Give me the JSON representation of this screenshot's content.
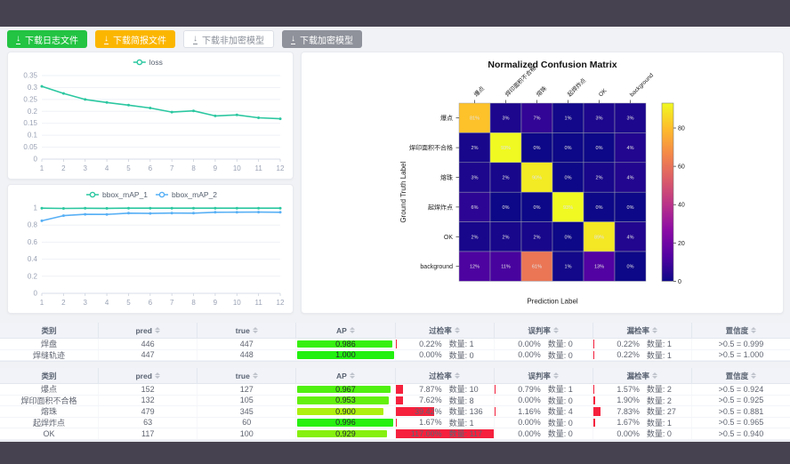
{
  "frame": {
    "band_color": "#474250",
    "page_bg": "#f0f2f5"
  },
  "toolbar": {
    "buttons": [
      {
        "label": "下载日志文件",
        "variant": "green",
        "icon": "download-icon"
      },
      {
        "label": "下载简报文件",
        "variant": "orange",
        "icon": "download-icon"
      },
      {
        "label": "下载非加密模型",
        "variant": "ghost",
        "icon": "download-icon"
      },
      {
        "label": "下载加密模型",
        "variant": "gray",
        "icon": "download-icon"
      }
    ]
  },
  "chart_data": [
    {
      "type": "line",
      "title": "",
      "legend": [
        "loss"
      ],
      "legend_position": "top",
      "grid": true,
      "x": [
        1,
        2,
        3,
        4,
        5,
        6,
        7,
        8,
        9,
        10,
        11,
        12
      ],
      "series": [
        {
          "name": "loss",
          "color": "#2bc7a0",
          "values": [
            0.305,
            0.275,
            0.25,
            0.237,
            0.226,
            0.214,
            0.197,
            0.202,
            0.181,
            0.185,
            0.173,
            0.169
          ]
        }
      ],
      "ylim": [
        0,
        0.35
      ],
      "yticks": [
        0,
        0.05,
        0.1,
        0.15,
        0.2,
        0.25,
        0.3,
        0.35
      ]
    },
    {
      "type": "line",
      "title": "",
      "legend": [
        "bbox_mAP_1",
        "bbox_mAP_2"
      ],
      "legend_position": "top",
      "grid": true,
      "x": [
        1,
        2,
        3,
        4,
        5,
        6,
        7,
        8,
        9,
        10,
        11,
        12
      ],
      "series": [
        {
          "name": "bbox_mAP_1",
          "color": "#2bc7a0",
          "values": [
            0.998,
            0.995,
            0.997,
            0.996,
            0.998,
            0.998,
            0.998,
            0.998,
            0.998,
            0.998,
            0.998,
            0.998
          ]
        },
        {
          "name": "bbox_mAP_2",
          "color": "#58b0f5",
          "values": [
            0.85,
            0.91,
            0.926,
            0.925,
            0.94,
            0.936,
            0.941,
            0.94,
            0.95,
            0.951,
            0.952,
            0.95
          ]
        }
      ],
      "ylim": [
        0,
        1
      ],
      "yticks": [
        0,
        0.2,
        0.4,
        0.6,
        0.8,
        1
      ]
    },
    {
      "type": "heatmap",
      "title": "Normalized Confusion Matrix",
      "xlabel": "Prediction Label",
      "ylabel": "Ground Truth Label",
      "categories": [
        "爆点",
        "焊印面积不合格",
        "熔珠",
        "起焊炸点",
        "OK",
        "background"
      ],
      "matrix": [
        [
          81,
          3,
          7,
          1,
          3,
          3
        ],
        [
          2,
          93,
          0,
          0,
          0,
          4
        ],
        [
          3,
          2,
          90,
          0,
          2,
          4
        ],
        [
          6,
          0,
          0,
          93,
          0,
          0
        ],
        [
          2,
          2,
          2,
          0,
          89,
          4
        ],
        [
          12,
          11,
          61,
          1,
          13,
          0
        ]
      ],
      "unit": "%",
      "vmin": 0,
      "vmax": 93,
      "colormap": "plasma",
      "colorbar_ticks": [
        0,
        20,
        40,
        60,
        80
      ]
    }
  ],
  "tables": {
    "count_label": "数量:",
    "headers": [
      {
        "label": "类别",
        "sortable": false
      },
      {
        "label": "pred",
        "sortable": true
      },
      {
        "label": "true",
        "sortable": true
      },
      {
        "label": "AP",
        "sortable": true
      },
      {
        "label": "过检率",
        "sortable": true
      },
      {
        "label": "误判率",
        "sortable": true
      },
      {
        "label": "漏检率",
        "sortable": true
      },
      {
        "label": "置信度",
        "sortable": true
      }
    ],
    "groups": [
      {
        "rows": [
          {
            "class": "焊盘",
            "pred": "446",
            "true": "447",
            "ap": {
              "text": "0.986",
              "value": 0.986
            },
            "over": {
              "pct": "0.22%",
              "count": "1",
              "value": 0.22
            },
            "mis": {
              "pct": "0.00%",
              "count": "0",
              "value": 0
            },
            "miss": {
              "pct": "0.22%",
              "count": "1",
              "value": 0.22
            },
            "conf": ">0.5 = 0.999"
          },
          {
            "class": "焊缝轨迹",
            "pred": "447",
            "true": "448",
            "ap": {
              "text": "1.000",
              "value": 1.0
            },
            "over": {
              "pct": "0.00%",
              "count": "0",
              "value": 0
            },
            "mis": {
              "pct": "0.00%",
              "count": "0",
              "value": 0
            },
            "miss": {
              "pct": "0.22%",
              "count": "1",
              "value": 0.22
            },
            "conf": ">0.5 = 1.000"
          }
        ]
      },
      {
        "rows": [
          {
            "class": "爆点",
            "pred": "152",
            "true": "127",
            "ap": {
              "text": "0.967",
              "value": 0.967
            },
            "over": {
              "pct": "7.87%",
              "count": "10",
              "value": 7.87
            },
            "mis": {
              "pct": "0.79%",
              "count": "1",
              "value": 0.79
            },
            "miss": {
              "pct": "1.57%",
              "count": "2",
              "value": 1.57
            },
            "conf": ">0.5 = 0.924"
          },
          {
            "class": "焊印面积不合格",
            "pred": "132",
            "true": "105",
            "ap": {
              "text": "0.953",
              "value": 0.953
            },
            "over": {
              "pct": "7.62%",
              "count": "8",
              "value": 7.62
            },
            "mis": {
              "pct": "0.00%",
              "count": "0",
              "value": 0
            },
            "miss": {
              "pct": "1.90%",
              "count": "2",
              "value": 1.9
            },
            "conf": ">0.5 = 0.925"
          },
          {
            "class": "熔珠",
            "pred": "479",
            "true": "345",
            "ap": {
              "text": "0.900",
              "value": 0.9
            },
            "over": {
              "pct": "39.42%",
              "count": "136",
              "value": 39.42
            },
            "mis": {
              "pct": "1.16%",
              "count": "4",
              "value": 1.16
            },
            "miss": {
              "pct": "7.83%",
              "count": "27",
              "value": 7.83
            },
            "conf": ">0.5 = 0.881"
          },
          {
            "class": "起焊炸点",
            "pred": "63",
            "true": "60",
            "ap": {
              "text": "0.996",
              "value": 0.996
            },
            "over": {
              "pct": "1.67%",
              "count": "1",
              "value": 1.67
            },
            "mis": {
              "pct": "0.00%",
              "count": "0",
              "value": 0
            },
            "miss": {
              "pct": "1.67%",
              "count": "1",
              "value": 1.67
            },
            "conf": ">0.5 = 0.965"
          },
          {
            "class": "OK",
            "pred": "117",
            "true": "100",
            "ap": {
              "text": "0.929",
              "value": 0.929
            },
            "over": {
              "pct": "117.00%",
              "count": "117",
              "value": 117
            },
            "mis": {
              "pct": "0.00%",
              "count": "0",
              "value": 0
            },
            "miss": {
              "pct": "0.00%",
              "count": "0",
              "value": 0
            },
            "conf": ">0.5 = 0.940"
          }
        ]
      }
    ]
  },
  "colors": {
    "accent_green": "#23c343",
    "accent_orange": "#fbb600",
    "line_teal": "#2bc7a0",
    "line_blue": "#58b0f5",
    "bar_red": "#f5213d"
  }
}
